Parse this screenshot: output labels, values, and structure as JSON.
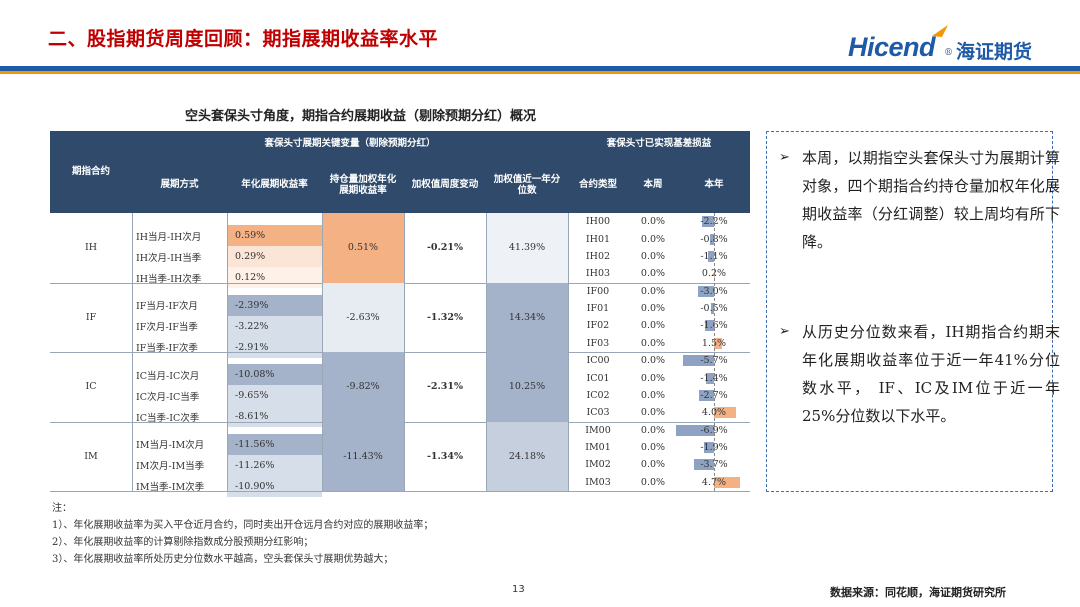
{
  "header": {
    "title": "二、股指期货周度回顾：期指展期收益率水平",
    "logo_brand": "Hicend",
    "logo_reg": "®",
    "logo_cn": "海证期货"
  },
  "table": {
    "caption": "空头套保头寸角度，期指合约展期收益（剔除预期分红）概况",
    "headers": {
      "contract": "期指合约",
      "group1": "套保头寸展期关键变量（剔除预期分红）",
      "group2": "套保头寸已实现基差损益",
      "method": "展期方式",
      "ann": "年化展期收益率",
      "oiw": "持仓量加权年化展期收益率",
      "wk": "加权值周度变动",
      "pct": "加权值近一年分位数",
      "type": "合约类型",
      "week": "本周",
      "year": "本年"
    },
    "groups": [
      {
        "name": "IH",
        "rows": [
          {
            "method": "IH当月-IH次月",
            "ann": "0.59%"
          },
          {
            "method": "IH次月-IH当季",
            "ann": "0.29%"
          },
          {
            "method": "IH当季-IH次季",
            "ann": "0.12%"
          }
        ],
        "oiw": "0.51%",
        "wk": "-0.21%",
        "pct": "41.39%",
        "contracts": [
          {
            "code": "IH00",
            "week": "0.0%",
            "year": "-2.2%"
          },
          {
            "code": "IH01",
            "week": "0.0%",
            "year": "-0.8%"
          },
          {
            "code": "IH02",
            "week": "0.0%",
            "year": "-1.1%"
          },
          {
            "code": "IH03",
            "week": "0.0%",
            "year": "0.2%"
          }
        ]
      },
      {
        "name": "IF",
        "rows": [
          {
            "method": "IF当月-IF次月",
            "ann": "-2.39%"
          },
          {
            "method": "IF次月-IF当季",
            "ann": "-3.22%"
          },
          {
            "method": "IF当季-IF次季",
            "ann": "-2.91%"
          }
        ],
        "oiw": "-2.63%",
        "wk": "-1.32%",
        "pct": "14.34%",
        "contracts": [
          {
            "code": "IF00",
            "week": "0.0%",
            "year": "-3.0%"
          },
          {
            "code": "IF01",
            "week": "0.0%",
            "year": "-0.5%"
          },
          {
            "code": "IF02",
            "week": "0.0%",
            "year": "-1.6%"
          },
          {
            "code": "IF03",
            "week": "0.0%",
            "year": "1.5%"
          }
        ]
      },
      {
        "name": "IC",
        "rows": [
          {
            "method": "IC当月-IC次月",
            "ann": "-10.08%"
          },
          {
            "method": "IC次月-IC当季",
            "ann": "-9.65%"
          },
          {
            "method": "IC当季-IC次季",
            "ann": "-8.61%"
          }
        ],
        "oiw": "-9.82%",
        "wk": "-2.31%",
        "pct": "10.25%",
        "contracts": [
          {
            "code": "IC00",
            "week": "0.0%",
            "year": "-5.7%"
          },
          {
            "code": "IC01",
            "week": "0.0%",
            "year": "-1.4%"
          },
          {
            "code": "IC02",
            "week": "0.0%",
            "year": "-2.7%"
          },
          {
            "code": "IC03",
            "week": "0.0%",
            "year": "4.0%"
          }
        ]
      },
      {
        "name": "IM",
        "rows": [
          {
            "method": "IM当月-IM次月",
            "ann": "-11.56%"
          },
          {
            "method": "IM次月-IM当季",
            "ann": "-11.26%"
          },
          {
            "method": "IM当季-IM次季",
            "ann": "-10.90%"
          }
        ],
        "oiw": "-11.43%",
        "wk": "-1.34%",
        "pct": "24.18%",
        "contracts": [
          {
            "code": "IM00",
            "week": "0.0%",
            "year": "-6.9%"
          },
          {
            "code": "IM01",
            "week": "0.0%",
            "year": "-1.9%"
          },
          {
            "code": "IM02",
            "week": "0.0%",
            "year": "-3.7%"
          },
          {
            "code": "IM03",
            "week": "0.0%",
            "year": "4.7%"
          }
        ]
      }
    ],
    "colors": {
      "header_bg": "#2f4a6b",
      "pos_strong": "#f4b183",
      "pos_light": "#fbe5d6",
      "neg_strong": "#a4b3c9",
      "neg_light": "#d6deea",
      "bar_neg": "#8ea3c3",
      "bar_pos": "#f4b183"
    }
  },
  "bullets": [
    "本周，以期指空头套保头寸为展期计算对象，四个期指合约持仓量加权年化展期收益率（分红调整）较上周均有所下降。",
    "从历史分位数来看，IH期指合约期末年化展期收益率位于近一年41%分位数水平， IF、IC及IM位于近一年25%分位数以下水平。"
  ],
  "bullet_icon": "arrow-bullet-icon",
  "notes": [
    "注：",
    "1）、年化展期收益率为买入平仓近月合约，同时卖出开仓远月合约对应的展期收益率；",
    "2）、年化展期收益率的计算剔除指数成分股预期分红影响；",
    "3）、年化展期收益率所处历史分位数水平越高，空头套保头寸展期优势越大；"
  ],
  "page_number": "13",
  "source": "数据来源：同花顺，海证期货研究所"
}
